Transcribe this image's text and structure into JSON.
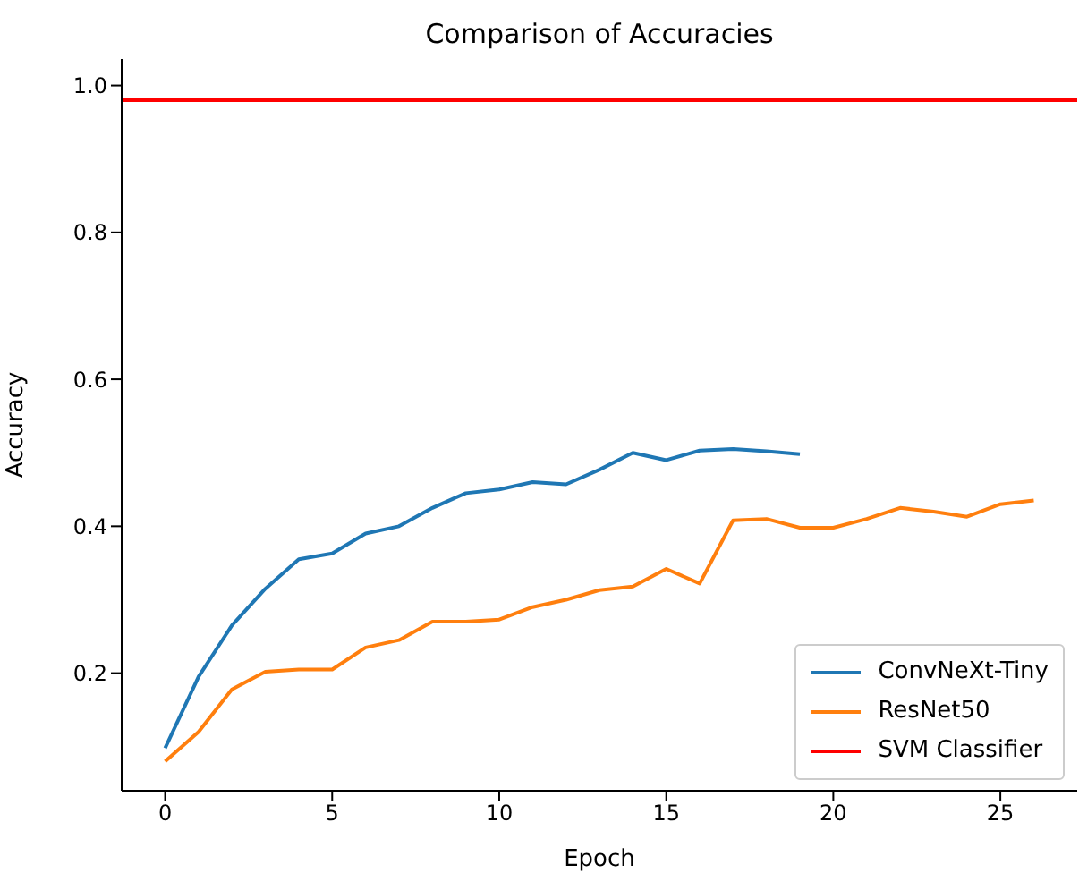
{
  "chart_data": {
    "type": "line",
    "title": "Comparison of Accuracies",
    "xlabel": "Epoch",
    "ylabel": "Accuracy",
    "series": [
      {
        "name": "ConvNeXt-Tiny",
        "color": "#1f77b4",
        "x": [
          0,
          1,
          2,
          3,
          4,
          5,
          6,
          7,
          8,
          9,
          10,
          11,
          12,
          13,
          14,
          15,
          16,
          17,
          18,
          19
        ],
        "values": [
          0.098,
          0.195,
          0.265,
          0.315,
          0.355,
          0.363,
          0.39,
          0.4,
          0.425,
          0.445,
          0.45,
          0.46,
          0.457,
          0.477,
          0.5,
          0.49,
          0.503,
          0.505,
          0.502,
          0.498
        ]
      },
      {
        "name": "ResNet50",
        "color": "#ff7f0e",
        "x": [
          0,
          1,
          2,
          3,
          4,
          5,
          6,
          7,
          8,
          9,
          10,
          11,
          12,
          13,
          14,
          15,
          16,
          17,
          18,
          19,
          20,
          21,
          22,
          23,
          24,
          25,
          26
        ],
        "values": [
          0.08,
          0.12,
          0.178,
          0.202,
          0.205,
          0.205,
          0.235,
          0.245,
          0.27,
          0.27,
          0.273,
          0.29,
          0.3,
          0.313,
          0.318,
          0.342,
          0.322,
          0.408,
          0.41,
          0.398,
          0.398,
          0.41,
          0.425,
          0.42,
          0.413,
          0.43,
          0.435
        ]
      }
    ],
    "ref_lines": [
      {
        "axis": "y",
        "value": 0.98,
        "label": "SVM Classifier",
        "color": "#ff0000"
      }
    ],
    "xlim": [
      -1.3,
      27.3
    ],
    "xticks": [
      0,
      5,
      10,
      15,
      20,
      25
    ],
    "ylim": [
      0.04,
      1.036
    ],
    "yticks": [
      0.2,
      0.4,
      0.6,
      0.8,
      {
        "value": 1,
        "label": "1.0"
      }
    ],
    "grid": false,
    "legend": "bottom right",
    "marker": "none",
    "line_style": "solid"
  }
}
